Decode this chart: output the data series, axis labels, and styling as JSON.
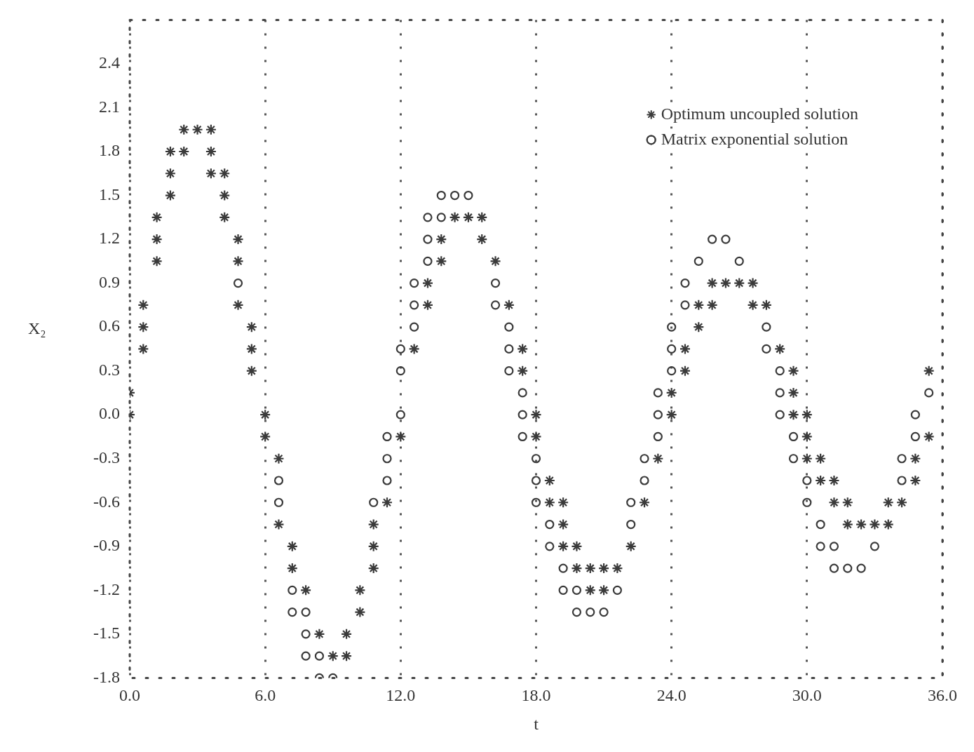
{
  "chart_data": {
    "type": "scatter",
    "xlabel": "t",
    "ylabel": "X₂",
    "xlim": [
      0,
      36
    ],
    "ylim": [
      -1.8,
      2.7
    ],
    "xticks": [
      {
        "value": 0,
        "label": "0.0"
      },
      {
        "value": 6,
        "label": "6.0"
      },
      {
        "value": 12,
        "label": "12.0"
      },
      {
        "value": 18,
        "label": "18.0"
      },
      {
        "value": 24,
        "label": "24.0"
      },
      {
        "value": 30,
        "label": "30.0"
      },
      {
        "value": 36,
        "label": "36.0"
      }
    ],
    "yticks": [
      {
        "value": -1.8,
        "label": "-1.8"
      },
      {
        "value": -1.5,
        "label": "-1.5"
      },
      {
        "value": -1.2,
        "label": "-1.2"
      },
      {
        "value": -0.9,
        "label": "-0.9"
      },
      {
        "value": -0.6,
        "label": "-0.6"
      },
      {
        "value": -0.3,
        "label": "-0.3"
      },
      {
        "value": 0,
        "label": "0.0"
      },
      {
        "value": 0.3,
        "label": "0.3"
      },
      {
        "value": 0.6,
        "label": "0.6"
      },
      {
        "value": 0.9,
        "label": "0.9"
      },
      {
        "value": 1.2,
        "label": "1.2"
      },
      {
        "value": 1.5,
        "label": "1.5"
      },
      {
        "value": 1.8,
        "label": "1.8"
      },
      {
        "value": 2.1,
        "label": "2.1"
      },
      {
        "value": 2.4,
        "label": "2.4"
      }
    ],
    "grid": "x",
    "legend": "top right",
    "line_style": "dotted",
    "series": [
      {
        "name": "Optimum uncoupled solution",
        "color": "#3a3a3a",
        "marker": "cross",
        "x": [
          0,
          0,
          0.6,
          0.6,
          0.6,
          1.2,
          1.2,
          1.2,
          1.8,
          1.8,
          1.8,
          2.4,
          2.4,
          3.0,
          3.6,
          3.6,
          3.6,
          4.2,
          4.2,
          4.2,
          4.8,
          4.8,
          4.8,
          5.4,
          5.4,
          5.4,
          6.0,
          6.0,
          6.6,
          6.6,
          7.2,
          7.2,
          7.8,
          8.4,
          9.0,
          9.6,
          9.6,
          10.2,
          10.2,
          10.8,
          10.8,
          10.8,
          11.4,
          12.0,
          12.6,
          13.2,
          13.2,
          13.8,
          13.8,
          14.4,
          15.0,
          15.6,
          15.6,
          16.2,
          16.8,
          17.4,
          17.4,
          18.0,
          18.0,
          18.6,
          18.6,
          19.2,
          19.2,
          19.2,
          19.8,
          19.8,
          20.4,
          20.4,
          21.0,
          21.0,
          21.6,
          22.2,
          22.8,
          23.4,
          24.0,
          24.0,
          24.6,
          24.6,
          25.2,
          25.2,
          25.8,
          25.8,
          26.4,
          27.0,
          27.6,
          27.6,
          28.2,
          28.8,
          29.4,
          29.4,
          29.4,
          30.0,
          30.0,
          30.0,
          30.6,
          30.6,
          31.2,
          31.2,
          31.8,
          31.8,
          32.4,
          33.0,
          33.6,
          33.6,
          34.2,
          34.8,
          34.8,
          35.4,
          35.4
        ],
        "values": [
          0.0,
          0.15,
          0.45,
          0.6,
          0.75,
          1.05,
          1.2,
          1.35,
          1.5,
          1.65,
          1.8,
          1.8,
          1.95,
          1.95,
          1.95,
          1.8,
          1.65,
          1.65,
          1.5,
          1.35,
          1.2,
          1.05,
          0.75,
          0.6,
          0.45,
          0.3,
          0.0,
          -0.15,
          -0.3,
          -0.75,
          -0.9,
          -1.05,
          -1.2,
          -1.5,
          -1.65,
          -1.65,
          -1.5,
          -1.35,
          -1.2,
          -1.05,
          -0.9,
          -0.75,
          -0.6,
          -0.15,
          0.45,
          0.75,
          0.9,
          1.05,
          1.2,
          1.35,
          1.35,
          1.35,
          1.2,
          1.05,
          0.75,
          0.45,
          0.3,
          0.0,
          -0.15,
          -0.45,
          -0.6,
          -0.6,
          -0.75,
          -0.9,
          -0.9,
          -1.05,
          -1.05,
          -1.2,
          -1.05,
          -1.2,
          -1.05,
          -0.9,
          -0.6,
          -0.3,
          0.0,
          0.15,
          0.3,
          0.45,
          0.6,
          0.75,
          0.75,
          0.9,
          0.9,
          0.9,
          0.9,
          0.75,
          0.75,
          0.45,
          0.3,
          0.15,
          0.0,
          0.0,
          -0.15,
          -0.3,
          -0.3,
          -0.45,
          -0.45,
          -0.6,
          -0.6,
          -0.75,
          -0.75,
          -0.75,
          -0.75,
          -0.6,
          -0.6,
          -0.45,
          -0.3,
          -0.15,
          0.3
        ]
      },
      {
        "name": "Matrix exponential solution",
        "color": "#3a3a3a",
        "marker": "circle",
        "x": [
          4.8,
          6.6,
          6.6,
          7.2,
          7.2,
          7.8,
          7.8,
          7.8,
          8.4,
          8.4,
          9.0,
          10.8,
          11.4,
          11.4,
          11.4,
          12.0,
          12.0,
          12.0,
          12.6,
          12.6,
          12.6,
          13.2,
          13.2,
          13.2,
          13.8,
          13.8,
          14.4,
          15.0,
          16.2,
          16.2,
          16.8,
          16.8,
          16.8,
          17.4,
          17.4,
          17.4,
          18.0,
          18.0,
          18.0,
          18.6,
          18.6,
          19.2,
          19.2,
          19.8,
          19.8,
          20.4,
          21.0,
          21.6,
          22.2,
          22.2,
          22.8,
          22.8,
          23.4,
          23.4,
          23.4,
          24.0,
          24.0,
          24.0,
          24.6,
          24.6,
          25.2,
          25.8,
          26.4,
          27.0,
          28.2,
          28.2,
          28.8,
          28.8,
          28.8,
          29.4,
          29.4,
          30.0,
          30.0,
          30.6,
          30.6,
          31.2,
          31.2,
          31.8,
          32.4,
          33.0,
          34.2,
          34.2,
          34.8,
          34.8,
          35.4
        ],
        "values": [
          0.9,
          -0.45,
          -0.6,
          -1.2,
          -1.35,
          -1.35,
          -1.5,
          -1.65,
          -1.65,
          -1.8,
          -1.8,
          -0.6,
          -0.45,
          -0.3,
          -0.15,
          0.0,
          0.3,
          0.45,
          0.6,
          0.75,
          0.9,
          1.05,
          1.2,
          1.35,
          1.35,
          1.5,
          1.5,
          1.5,
          0.9,
          0.75,
          0.6,
          0.45,
          0.3,
          0.15,
          0.0,
          -0.15,
          -0.3,
          -0.45,
          -0.6,
          -0.75,
          -0.9,
          -1.05,
          -1.2,
          -1.2,
          -1.35,
          -1.35,
          -1.35,
          -1.2,
          -0.75,
          -0.6,
          -0.45,
          -0.3,
          -0.15,
          0.0,
          0.15,
          0.3,
          0.45,
          0.6,
          0.75,
          0.9,
          1.05,
          1.2,
          1.2,
          1.05,
          0.6,
          0.45,
          0.3,
          0.15,
          0.0,
          -0.15,
          -0.3,
          -0.45,
          -0.6,
          -0.75,
          -0.9,
          -0.9,
          -1.05,
          -1.05,
          -1.05,
          -0.9,
          -0.45,
          -0.3,
          -0.15,
          0.0,
          0.15
        ]
      }
    ]
  }
}
